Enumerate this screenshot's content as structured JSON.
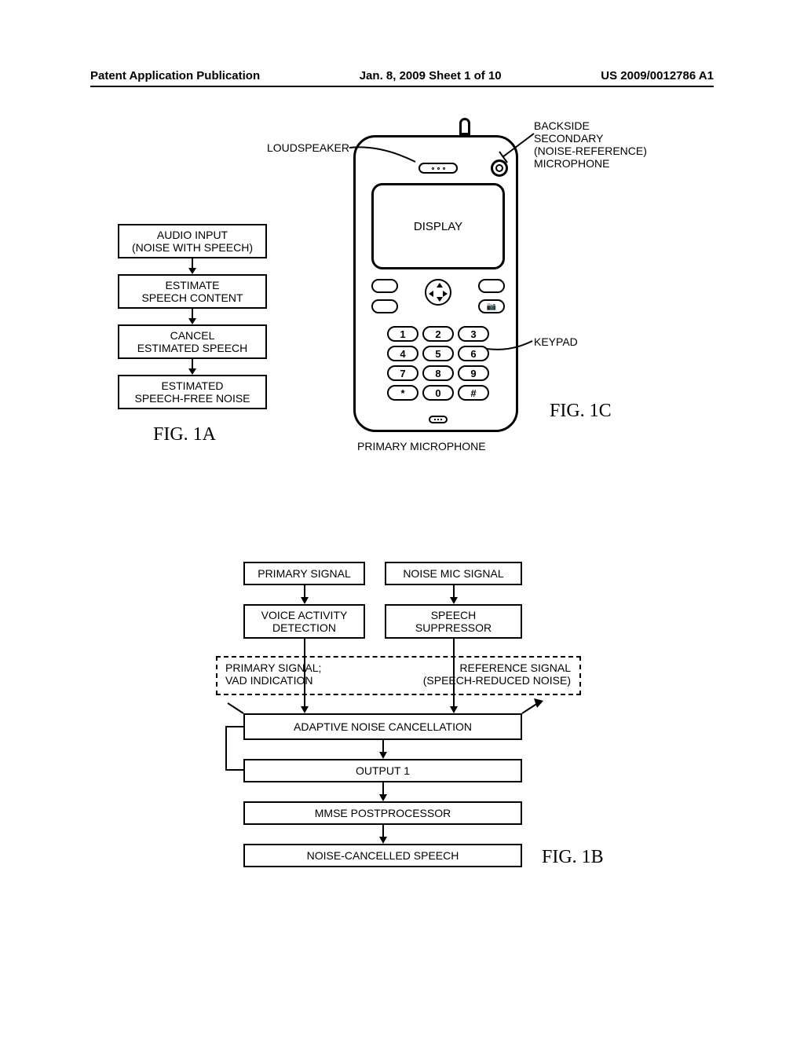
{
  "header": {
    "left": "Patent Application Publication",
    "center": "Jan. 8, 2009  Sheet 1 of 10",
    "right": "US 2009/0012786 A1"
  },
  "colors": {
    "stroke": "#000000",
    "background": "#ffffff"
  },
  "figA": {
    "label": "FIG. 1A",
    "boxes": {
      "b1": "AUDIO INPUT\n(NOISE WITH SPEECH)",
      "b2": "ESTIMATE\nSPEECH CONTENT",
      "b3": "CANCEL\nESTIMATED SPEECH",
      "b4": "ESTIMATED\nSPEECH-FREE NOISE"
    }
  },
  "figB": {
    "label": "FIG. 1B",
    "boxes": {
      "primary": "PRIMARY SIGNAL",
      "noisemic": "NOISE MIC SIGNAL",
      "vad": "VOICE ACTIVITY\nDETECTION",
      "supp": "SPEECH\nSUPPRESSOR",
      "ps_vad": "PRIMARY SIGNAL;\nVAD INDICATION",
      "ref": "REFERENCE SIGNAL\n(SPEECH-REDUCED NOISE)",
      "anc": "ADAPTIVE NOISE CANCELLATION",
      "out1": "OUTPUT 1",
      "mmse": "MMSE POSTPROCESSOR",
      "ncs": "NOISE-CANCELLED SPEECH"
    }
  },
  "figC": {
    "label": "FIG. 1C",
    "labels": {
      "loudspeaker": "LOUDSPEAKER",
      "secmic": "BACKSIDE\nSECONDARY\n(NOISE-REFERENCE)\nMICROPHONE",
      "display": "DISPLAY",
      "keypad": "KEYPAD",
      "primic": "PRIMARY MICROPHONE"
    },
    "keys": [
      "1",
      "2",
      "3",
      "4",
      "5",
      "6",
      "7",
      "8",
      "9",
      "*",
      "0",
      "#"
    ]
  }
}
